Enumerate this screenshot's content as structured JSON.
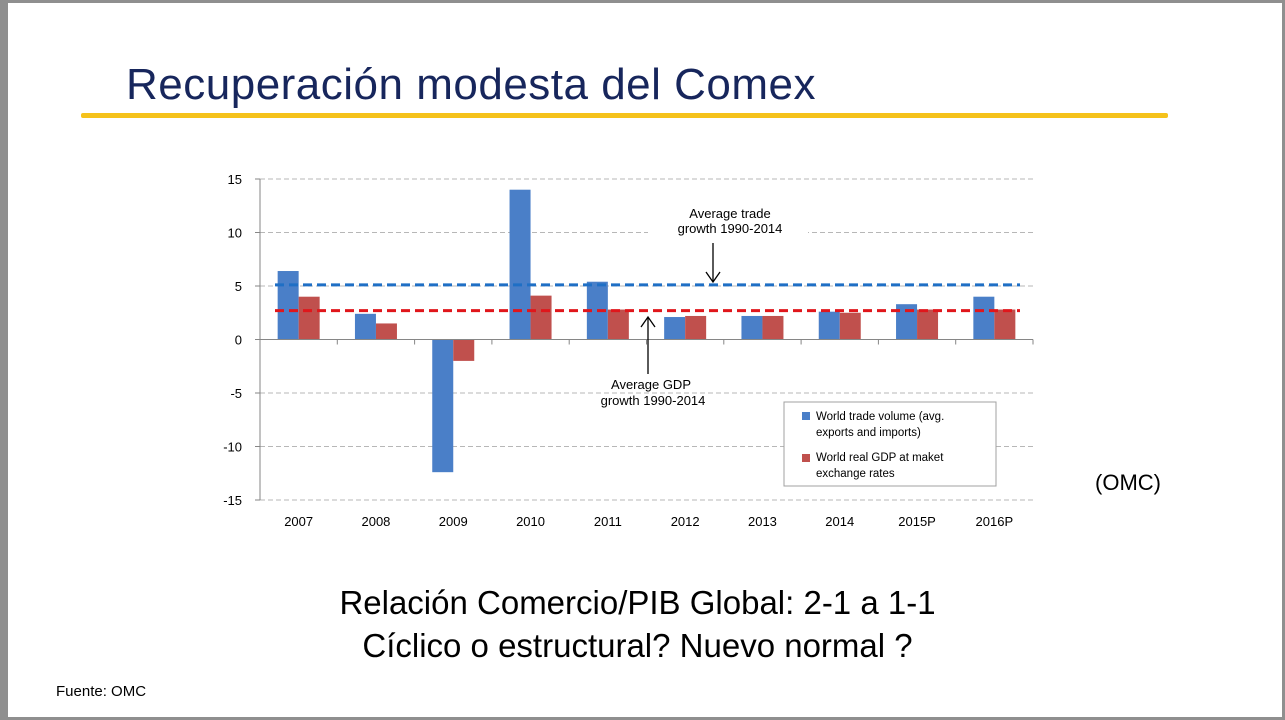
{
  "slide": {
    "title": "Recuperación modesta del Comex",
    "omc_tag": "(OMC)",
    "line1": "Relación Comercio/PIB Global: 2-1 a 1-1",
    "line2": "Cíclico o estructural? Nuevo normal ?",
    "source": "Fuente: OMC"
  },
  "colors": {
    "title": "#17265c",
    "rule": "#f5c21b",
    "trade": "#4a7fc8",
    "gdp": "#c0504d",
    "trade_avg_line": "#1f6fc5",
    "gdp_avg_line": "#e0161b"
  },
  "chart_data": {
    "type": "bar",
    "categories": [
      "2007",
      "2008",
      "2009",
      "2010",
      "2011",
      "2012",
      "2013",
      "2014",
      "2015P",
      "2016P"
    ],
    "series": [
      {
        "name": "World trade volume (avg. exports and imports)",
        "values": [
          6.4,
          2.4,
          -12.4,
          14.0,
          5.4,
          2.1,
          2.2,
          2.6,
          3.3,
          4.0
        ]
      },
      {
        "name": "World real GDP at maket exchange rates",
        "values": [
          4.0,
          1.5,
          -2.0,
          4.1,
          2.8,
          2.2,
          2.2,
          2.5,
          2.8,
          2.8
        ]
      }
    ],
    "reference_lines": [
      {
        "label": "Average trade growth 1990-2014",
        "value": 5.1
      },
      {
        "label": "Average GDP growth 1990-2014",
        "value": 2.7
      }
    ],
    "annotations": [
      {
        "lines": [
          "Average trade",
          "growth 1990-2014"
        ]
      },
      {
        "lines": [
          "Average GDP",
          "growth 1990-2014"
        ]
      }
    ],
    "y_ticks": [
      "15",
      "10",
      "5",
      "0",
      "-5",
      "-10",
      "-15"
    ],
    "ylim": [
      -15,
      15
    ],
    "grid": true,
    "legend_position": "bottom-right"
  }
}
